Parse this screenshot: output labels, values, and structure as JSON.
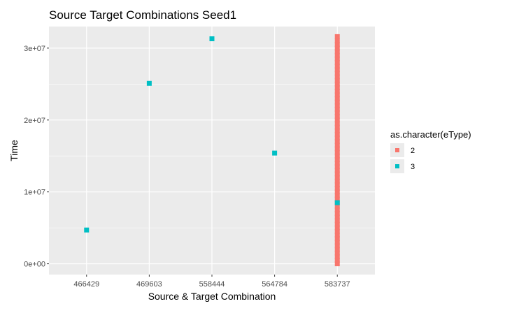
{
  "chart_data": {
    "type": "scatter",
    "title": "Source Target Combinations Seed1",
    "xlabel": "Source & Target Combination",
    "ylabel": "Time",
    "categories": [
      "466429",
      "469603",
      "558444",
      "564784",
      "583737"
    ],
    "ylim": [
      -1500000,
      33000000
    ],
    "yticks": [
      0,
      10000000,
      20000000,
      30000000
    ],
    "ytick_labels": [
      "0e+00",
      "1e+07",
      "2e+07",
      "3e+07"
    ],
    "grid": true,
    "legend": {
      "title": "as.character(eType)",
      "position": "right",
      "entries": [
        {
          "label": "2",
          "color": "#F8766D"
        },
        {
          "label": "3",
          "color": "#00BFC4"
        }
      ]
    },
    "series": [
      {
        "name": "2",
        "color": "#F8766D",
        "x": [
          "583737",
          "583737",
          "583737",
          "583737",
          "583737",
          "583737",
          "583737",
          "583737",
          "583737",
          "583737",
          "583737",
          "583737",
          "583737",
          "583737",
          "583737",
          "583737",
          "583737",
          "583737",
          "583737",
          "583737",
          "583737",
          "583737",
          "583737",
          "583737",
          "583737",
          "583737",
          "583737",
          "583737",
          "583737",
          "583737",
          "583737",
          "583737",
          "583737",
          "583737",
          "583737",
          "583737",
          "583737",
          "583737",
          "583737",
          "583737",
          "583737",
          "583737",
          "583737",
          "583737",
          "583737",
          "583737",
          "583737",
          "583737",
          "583737",
          "583737",
          "583737",
          "583737",
          "583737",
          "583737",
          "583737",
          "583737",
          "583737",
          "583737",
          "583737",
          "583737",
          "583737",
          "583737",
          "583737",
          "583737"
        ],
        "y": [
          0,
          500000,
          1000000,
          1500000,
          2000000,
          2500000,
          3000000,
          3500000,
          4000000,
          4500000,
          5000000,
          5500000,
          6000000,
          6500000,
          7000000,
          7500000,
          8000000,
          8500000,
          9000000,
          9500000,
          10000000,
          10500000,
          11000000,
          11500000,
          12000000,
          12500000,
          13000000,
          13500000,
          14000000,
          14500000,
          15000000,
          15500000,
          16000000,
          16500000,
          17000000,
          17500000,
          18000000,
          18500000,
          19000000,
          19500000,
          20000000,
          20500000,
          21000000,
          21500000,
          22000000,
          22500000,
          23000000,
          23500000,
          24000000,
          24500000,
          25000000,
          25500000,
          26000000,
          26500000,
          27000000,
          27500000,
          28000000,
          28500000,
          29000000,
          29500000,
          30000000,
          30500000,
          31000000,
          31600000
        ]
      },
      {
        "name": "3",
        "color": "#00BFC4",
        "x": [
          "466429",
          "469603",
          "558444",
          "564784",
          "583737"
        ],
        "y": [
          4700000,
          25100000,
          31300000,
          15400000,
          8500000
        ]
      }
    ]
  }
}
